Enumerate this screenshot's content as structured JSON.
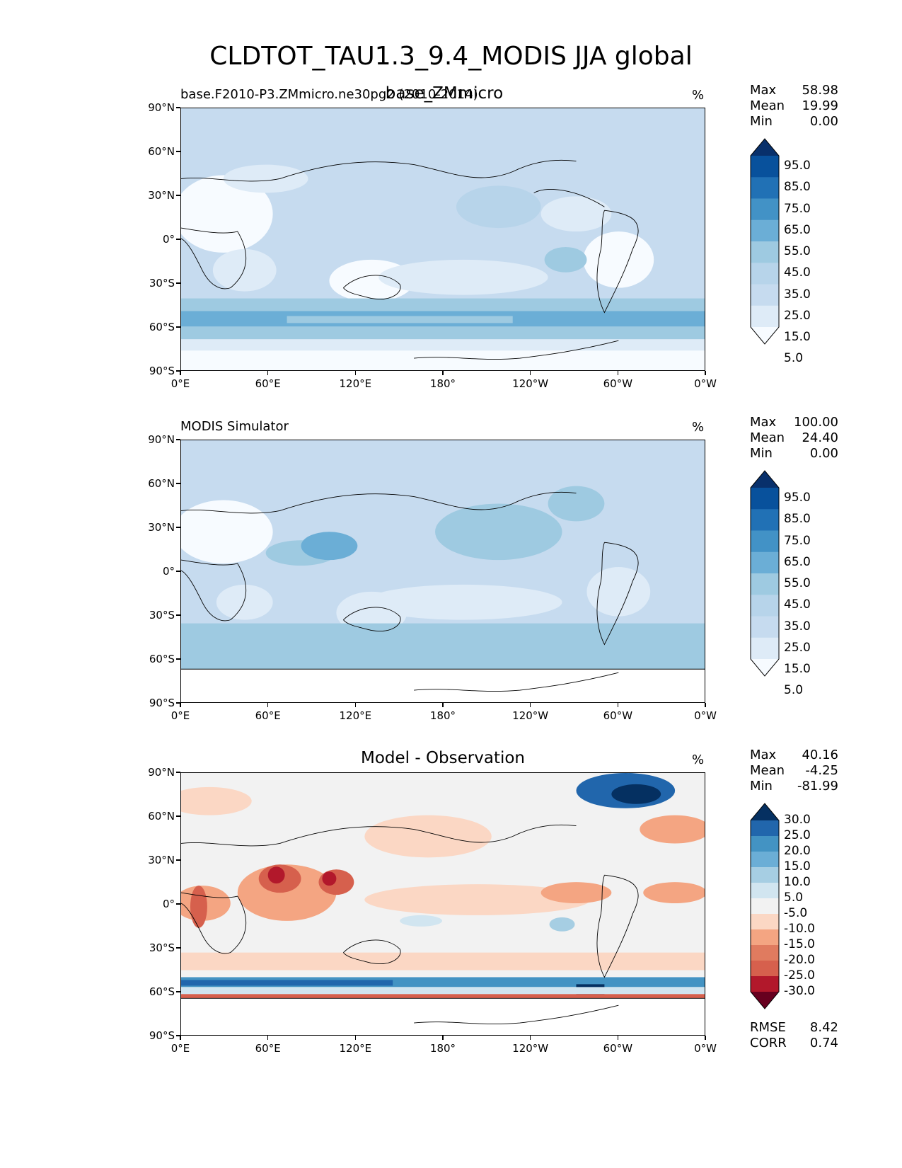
{
  "title": "CLDTOT_TAU1.3_9.4_MODIS JJA global",
  "panels": [
    {
      "left_label": "base.F2010-P3.ZMmicro.ne30pg2 (2010-2014)",
      "center_label": "base_ZMmicro",
      "units": "%",
      "stats": [
        {
          "label": "Max",
          "value": "58.98"
        },
        {
          "label": "Mean",
          "value": "19.99"
        },
        {
          "label": "Min",
          "value": "0.00"
        }
      ],
      "colorbar": {
        "labels": [
          "95.0",
          "85.0",
          "75.0",
          "65.0",
          "55.0",
          "45.0",
          "35.0",
          "25.0",
          "15.0",
          "5.0"
        ],
        "colors": [
          "#08306b",
          "#08519c",
          "#2171b5",
          "#4292c6",
          "#6baed6",
          "#9ecae1",
          "#b7d4ea",
          "#c6dbef",
          "#deebf7",
          "#f7fbff"
        ]
      }
    },
    {
      "left_label": "MODIS Simulator",
      "center_label": "",
      "units": "%",
      "stats": [
        {
          "label": "Max",
          "value": "100.00"
        },
        {
          "label": "Mean",
          "value": "24.40"
        },
        {
          "label": "Min",
          "value": "0.00"
        }
      ],
      "colorbar": {
        "labels": [
          "95.0",
          "85.0",
          "75.0",
          "65.0",
          "55.0",
          "45.0",
          "35.0",
          "25.0",
          "15.0",
          "5.0"
        ],
        "colors": [
          "#08306b",
          "#08519c",
          "#2171b5",
          "#4292c6",
          "#6baed6",
          "#9ecae1",
          "#b7d4ea",
          "#c6dbef",
          "#deebf7",
          "#f7fbff"
        ]
      }
    },
    {
      "left_label": "",
      "center_label": "Model - Observation",
      "units": "%",
      "stats": [
        {
          "label": "Max",
          "value": "40.16"
        },
        {
          "label": "Mean",
          "value": "-4.25"
        },
        {
          "label": "Min",
          "value": "-81.99"
        }
      ],
      "extra_stats": [
        {
          "label": "RMSE",
          "value": "8.42"
        },
        {
          "label": "CORR",
          "value": "0.74"
        }
      ],
      "colorbar": {
        "labels": [
          "30.0",
          "25.0",
          "20.0",
          "15.0",
          "10.0",
          "5.0",
          "-5.0",
          "-10.0",
          "-15.0",
          "-20.0",
          "-25.0",
          "-30.0"
        ],
        "colors": [
          "#053061",
          "#2166ac",
          "#4393c3",
          "#6baed6",
          "#a6cee3",
          "#d1e5f0",
          "#f2f2f2",
          "#fbd7c4",
          "#f4a582",
          "#e07b5f",
          "#d6604d",
          "#b2182b",
          "#67001f"
        ]
      }
    }
  ],
  "axes": {
    "lat_ticks": [
      "90°N",
      "60°N",
      "30°N",
      "0°",
      "30°S",
      "60°S",
      "90°S"
    ],
    "lon_ticks": [
      "0°E",
      "60°E",
      "120°E",
      "180°",
      "120°W",
      "60°W",
      "0°W"
    ]
  }
}
